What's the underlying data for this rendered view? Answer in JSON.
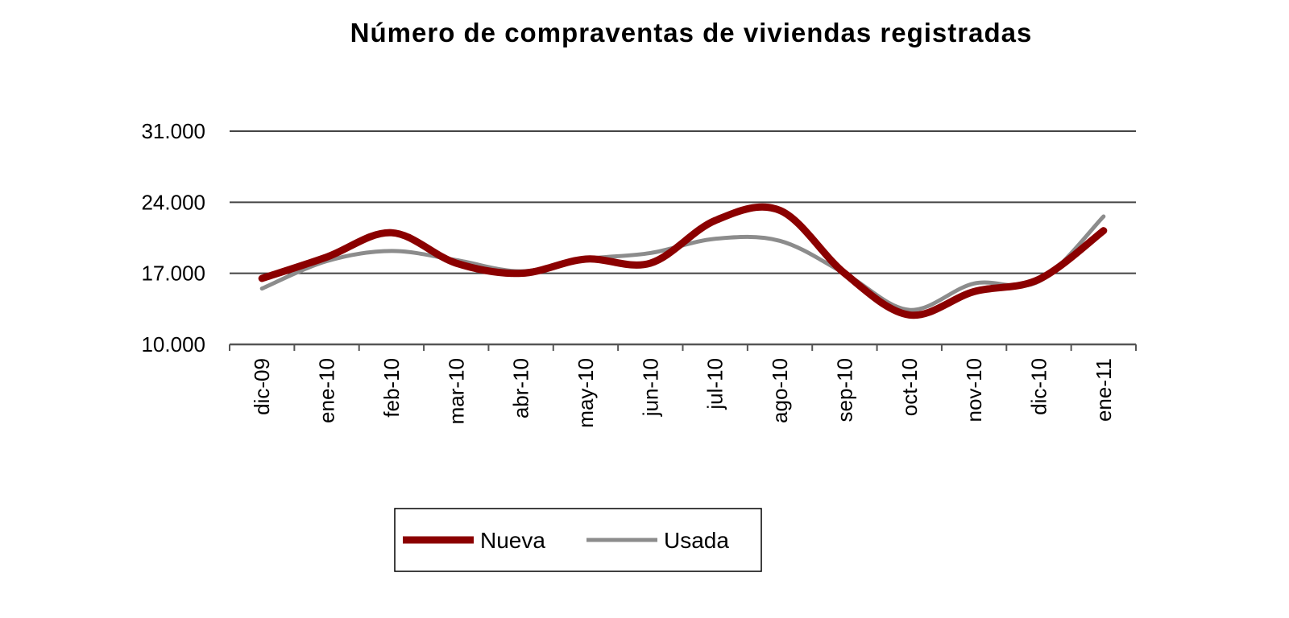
{
  "chart_data": {
    "type": "line",
    "title": "Número de compraventas de viviendas registradas",
    "xlabel": "",
    "ylabel": "",
    "categories": [
      "dic-09",
      "ene-10",
      "feb-10",
      "mar-10",
      "abr-10",
      "may-10",
      "jun-10",
      "jul-10",
      "ago-10",
      "sep-10",
      "oct-10",
      "nov-10",
      "dic-10",
      "ene-11"
    ],
    "ylim": [
      10000,
      31000
    ],
    "yticks": [
      10000,
      17000,
      24000,
      31000
    ],
    "ytick_labels": [
      "10.000",
      "17.000",
      "24.000",
      "31.000"
    ],
    "grid": true,
    "legend": "bottom",
    "series": [
      {
        "name": "Nueva",
        "color": "#8b0000",
        "values": [
          16500,
          18600,
          21000,
          18000,
          17000,
          18400,
          18000,
          22200,
          23200,
          17000,
          12900,
          15200,
          16400,
          21200
        ]
      },
      {
        "name": "Usada",
        "color": "#8c8c8c",
        "values": [
          15500,
          18200,
          19200,
          18300,
          17200,
          18400,
          19000,
          20400,
          20200,
          17000,
          13400,
          16000,
          16200,
          22600
        ]
      }
    ]
  }
}
